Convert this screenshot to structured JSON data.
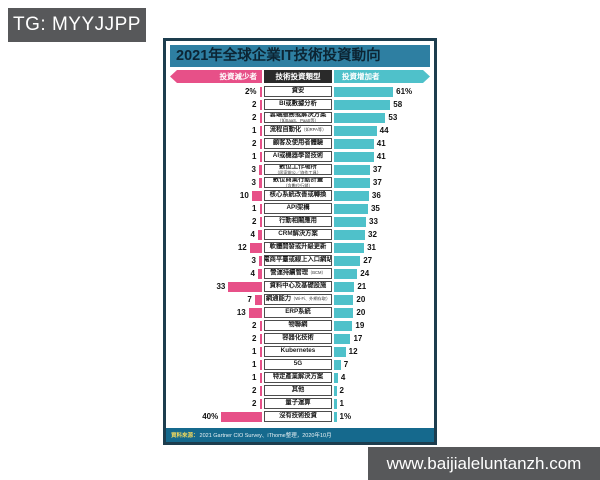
{
  "badge": {
    "text": "TG: MYYJJPP"
  },
  "watermark": {
    "text": "www.baijialeluntanzh.com"
  },
  "chart_data": {
    "type": "bar",
    "orientation": "horizontal-diverging",
    "title": "2021年全球企業IT技術投資動向",
    "unit": "%",
    "legend": {
      "left": "投資減少者",
      "center": "技術投資類型",
      "right": "投資增加者"
    },
    "series": [
      {
        "name": "投資減少者",
        "side": "left",
        "color": "#e75088"
      },
      {
        "name": "投資增加者",
        "side": "right",
        "color": "#4fc1ca"
      }
    ],
    "xlim_left": [
      0,
      45
    ],
    "xlim_right": [
      0,
      65
    ],
    "rows": [
      {
        "label": "資安",
        "note": "",
        "sub": "",
        "decrease": 2,
        "increase": 61,
        "decrease_label": "2%",
        "increase_label": "61%"
      },
      {
        "label": "BI或數據分析",
        "note": "",
        "sub": "",
        "decrease": 2,
        "increase": 58,
        "decrease_label": "2",
        "increase_label": "58"
      },
      {
        "label": "雲端服務或解決方案",
        "note": "",
        "sub": "（如SaaS、PaaS等）",
        "decrease": 2,
        "increase": 53,
        "decrease_label": "2",
        "increase_label": "53"
      },
      {
        "label": "流程自動化",
        "note": "（如RPA等）",
        "sub": "",
        "decrease": 1,
        "increase": 44,
        "decrease_label": "1",
        "increase_label": "44"
      },
      {
        "label": "顧客及使用者體驗",
        "note": "",
        "sub": "",
        "decrease": 2,
        "increase": 41,
        "decrease_label": "2",
        "increase_label": "41"
      },
      {
        "label": "AI或機器學習技術",
        "note": "",
        "sub": "",
        "decrease": 1,
        "increase": 41,
        "decrease_label": "1",
        "increase_label": "41"
      },
      {
        "label": "數位工作場所",
        "note": "",
        "sub": "（居家辦公／協作工具）",
        "decrease": 3,
        "increase": 37,
        "decrease_label": "3",
        "increase_label": "37"
      },
      {
        "label": "數位商業行動計畫",
        "note": "",
        "sub": "（含數位行銷）",
        "decrease": 3,
        "increase": 37,
        "decrease_label": "3",
        "increase_label": "37"
      },
      {
        "label": "核心系統改善或轉換",
        "note": "",
        "sub": "",
        "decrease": 10,
        "increase": 36,
        "decrease_label": "10",
        "increase_label": "36"
      },
      {
        "label": "API架構",
        "note": "",
        "sub": "",
        "decrease": 1,
        "increase": 35,
        "decrease_label": "1",
        "increase_label": "35"
      },
      {
        "label": "行動相關應用",
        "note": "",
        "sub": "",
        "decrease": 2,
        "increase": 33,
        "decrease_label": "2",
        "increase_label": "33"
      },
      {
        "label": "CRM解決方案",
        "note": "",
        "sub": "",
        "decrease": 4,
        "increase": 32,
        "decrease_label": "4",
        "increase_label": "32"
      },
      {
        "label": "軟體開發或升級更新",
        "note": "",
        "sub": "",
        "decrease": 12,
        "increase": 31,
        "decrease_label": "12",
        "increase_label": "31"
      },
      {
        "label": "電商平臺或線上入口網站",
        "note": "",
        "sub": "",
        "decrease": 3,
        "increase": 27,
        "decrease_label": "3",
        "increase_label": "27"
      },
      {
        "label": "營運持續管理",
        "note": "（BCM）",
        "sub": "",
        "decrease": 4,
        "increase": 24,
        "decrease_label": "4",
        "increase_label": "24"
      },
      {
        "label": "資料中心及基礎設施",
        "note": "",
        "sub": "",
        "decrease": 33,
        "increase": 21,
        "decrease_label": "33",
        "increase_label": "21"
      },
      {
        "label": "網通能力",
        "note": "（Wi-Fi、外網存取）",
        "sub": "",
        "decrease": 7,
        "increase": 20,
        "decrease_label": "7",
        "increase_label": "20"
      },
      {
        "label": "ERP系統",
        "note": "",
        "sub": "",
        "decrease": 13,
        "increase": 20,
        "decrease_label": "13",
        "increase_label": "20"
      },
      {
        "label": "物聯網",
        "note": "",
        "sub": "",
        "decrease": 2,
        "increase": 19,
        "decrease_label": "2",
        "increase_label": "19"
      },
      {
        "label": "容器化技術",
        "note": "",
        "sub": "",
        "decrease": 2,
        "increase": 17,
        "decrease_label": "2",
        "increase_label": "17"
      },
      {
        "label": "Kubernetes",
        "note": "",
        "sub": "",
        "decrease": 1,
        "increase": 12,
        "decrease_label": "1",
        "increase_label": "12"
      },
      {
        "label": "5G",
        "note": "",
        "sub": "",
        "decrease": 1,
        "increase": 7,
        "decrease_label": "1",
        "increase_label": "7"
      },
      {
        "label": "特定產業解決方案",
        "note": "",
        "sub": "",
        "decrease": 1,
        "increase": 4,
        "decrease_label": "1",
        "increase_label": "4"
      },
      {
        "label": "其他",
        "note": "",
        "sub": "",
        "decrease": 2,
        "increase": 2,
        "decrease_label": "2",
        "increase_label": "2"
      },
      {
        "label": "量子運算",
        "note": "",
        "sub": "",
        "decrease": 2,
        "increase": 1,
        "decrease_label": "2",
        "increase_label": "1"
      },
      {
        "label": "沒有技術投資",
        "note": "",
        "sub": "",
        "decrease": 40,
        "increase": 1,
        "decrease_label": "40%",
        "increase_label": "1%"
      }
    ],
    "source_prefix": "資料來源：",
    "source_text": "2021 Gartner CIO Survey、iThome整理，2020年10月"
  },
  "colors": {
    "decrease": "#e75088",
    "increase": "#4fc1ca",
    "title_bg": "#2e7fa2",
    "source_bg": "#15698d",
    "panel_border": "#1d3d4e",
    "badge_bg": "#57585a"
  }
}
